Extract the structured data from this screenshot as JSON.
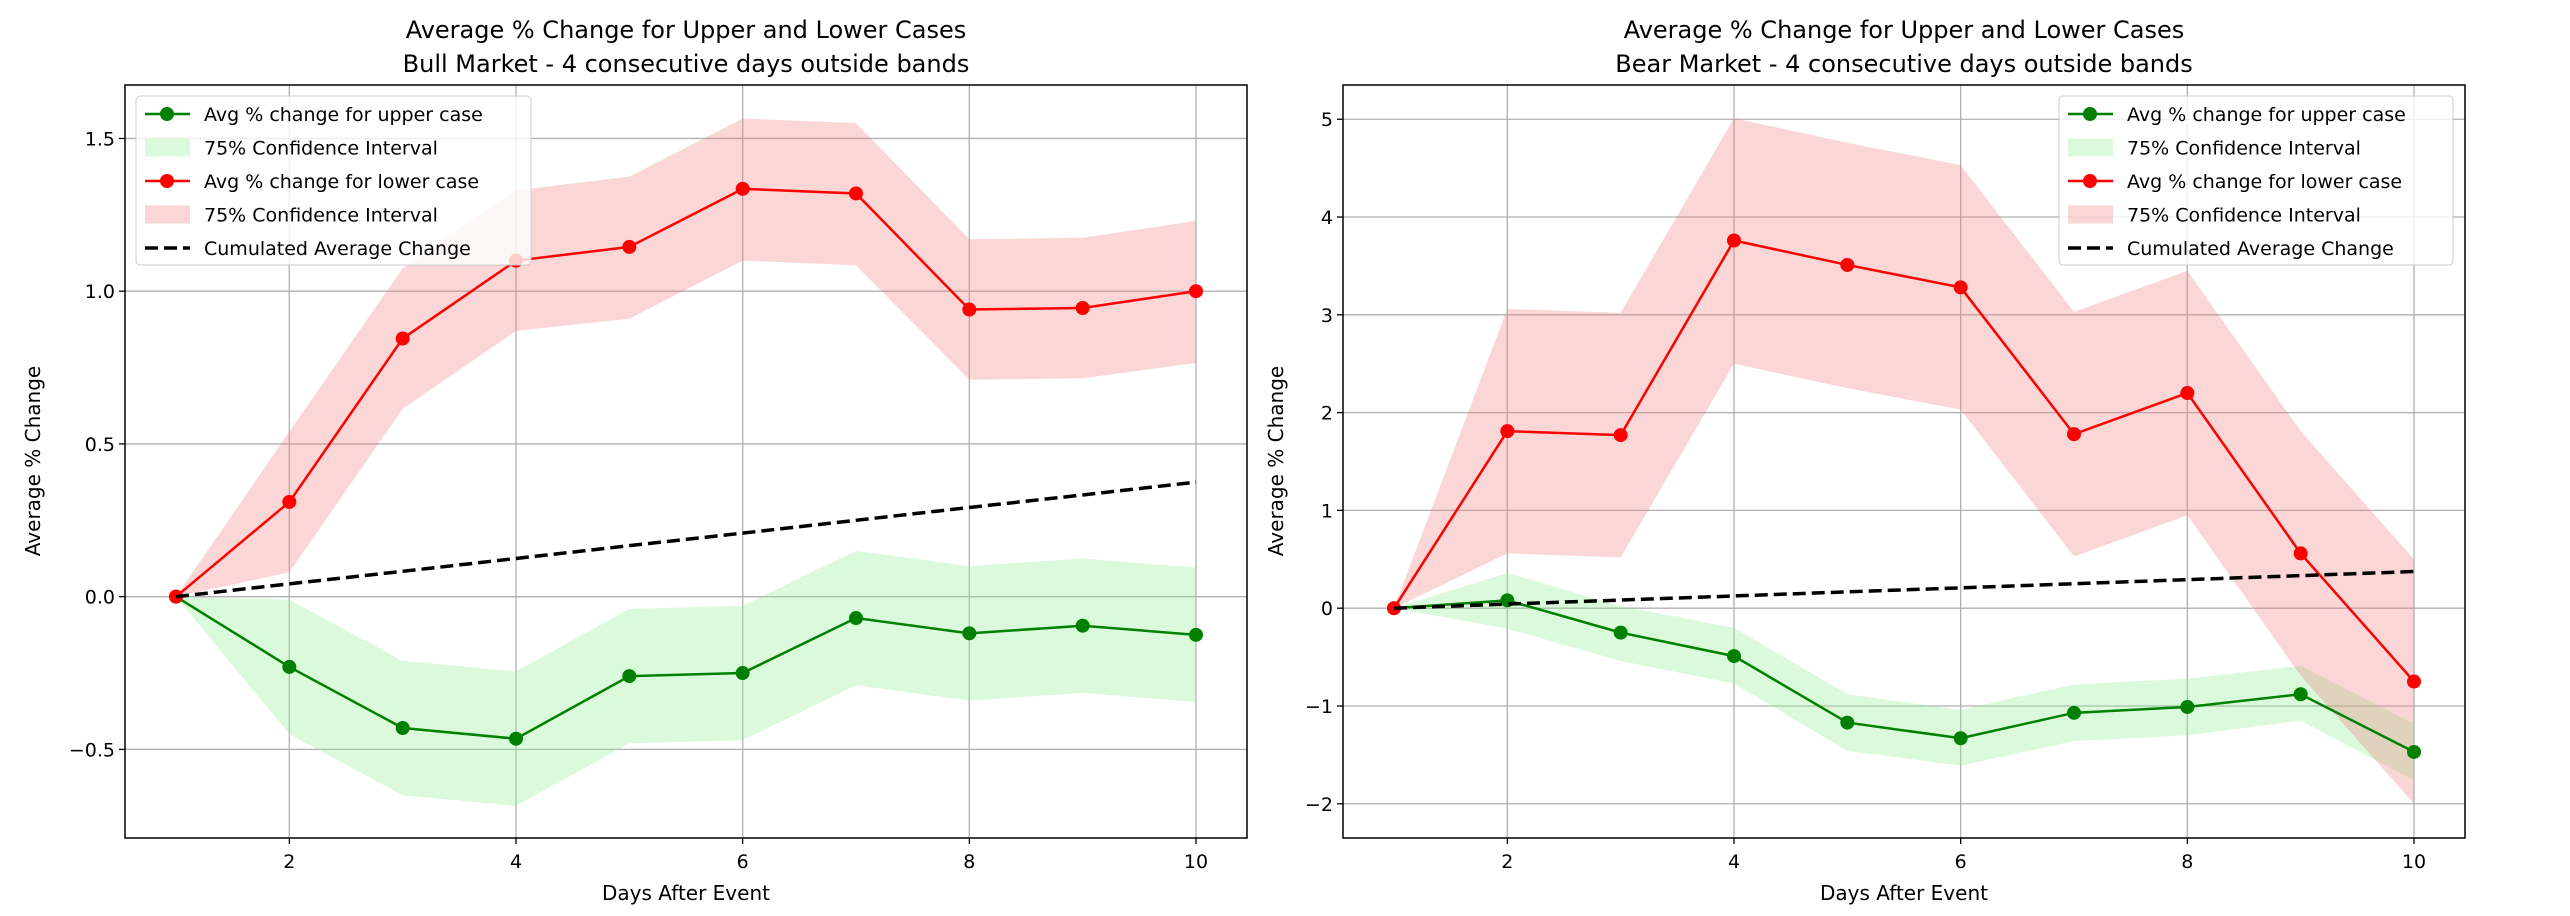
{
  "chart_data": [
    {
      "type": "line",
      "title": "Average % Change for Upper and Lower Cases",
      "subtitle": "Bull Market - 4 consecutive days outside bands",
      "xlabel": "Days After Event",
      "ylabel": "Average % Change",
      "xlim": [
        0.55,
        10.45
      ],
      "ylim": [
        -0.79,
        1.675
      ],
      "xticks": [
        2,
        4,
        6,
        8,
        10
      ],
      "xtick_labels": [
        "2",
        "4",
        "6",
        "8",
        "10"
      ],
      "yticks": [
        -0.5,
        0.0,
        0.5,
        1.0,
        1.5
      ],
      "ytick_labels": [
        "−0.5",
        "0.0",
        "0.5",
        "1.0",
        "1.5"
      ],
      "grid": true,
      "legend_placement": "upper-left",
      "x": [
        1,
        2,
        3,
        4,
        5,
        6,
        7,
        8,
        9,
        10
      ],
      "series": [
        {
          "name": "Avg % change for upper case",
          "kind": "line-marker",
          "color": "#008000",
          "values": [
            0,
            -0.23,
            -0.43,
            -0.465,
            -0.26,
            -0.25,
            -0.07,
            -0.12,
            -0.095,
            -0.125
          ]
        },
        {
          "name": "75% Confidence Interval",
          "kind": "band",
          "color": "#90ee90",
          "lower": [
            0,
            -0.45,
            -0.65,
            -0.685,
            -0.48,
            -0.47,
            -0.29,
            -0.34,
            -0.315,
            -0.345
          ],
          "upper": [
            0,
            -0.01,
            -0.21,
            -0.245,
            -0.04,
            -0.03,
            0.15,
            0.1,
            0.125,
            0.095
          ]
        },
        {
          "name": "Avg % change for lower case",
          "kind": "line-marker",
          "color": "#ff0000",
          "values": [
            0,
            0.31,
            0.845,
            1.1,
            1.145,
            1.335,
            1.32,
            0.94,
            0.945,
            1.0
          ]
        },
        {
          "name": "75% Confidence Interval",
          "kind": "band",
          "color": "#f08080",
          "lower": [
            0,
            0.08,
            0.615,
            0.87,
            0.91,
            1.1,
            1.085,
            0.71,
            0.715,
            0.765
          ],
          "upper": [
            0,
            0.54,
            1.075,
            1.33,
            1.375,
            1.565,
            1.55,
            1.17,
            1.175,
            1.23
          ]
        },
        {
          "name": "Cumulated Average Change",
          "kind": "dashed",
          "color": "#000000",
          "values": [
            0,
            0.042,
            0.083,
            0.125,
            0.167,
            0.208,
            0.25,
            0.292,
            0.333,
            0.375
          ]
        }
      ]
    },
    {
      "type": "line",
      "title": "Average % Change for Upper and Lower Cases",
      "subtitle": "Bear Market - 4 consecutive days outside bands",
      "xlabel": "Days After Event",
      "ylabel": "Average % Change",
      "xlim": [
        0.55,
        10.45
      ],
      "ylim": [
        -2.35,
        5.35
      ],
      "xticks": [
        2,
        4,
        6,
        8,
        10
      ],
      "xtick_labels": [
        "2",
        "4",
        "6",
        "8",
        "10"
      ],
      "yticks": [
        -2,
        -1,
        0,
        1,
        2,
        3,
        4,
        5
      ],
      "ytick_labels": [
        "−2",
        "−1",
        "0",
        "1",
        "2",
        "3",
        "4",
        "5"
      ],
      "grid": true,
      "legend_placement": "upper-right",
      "x": [
        1,
        2,
        3,
        4,
        5,
        6,
        7,
        8,
        9,
        10
      ],
      "series": [
        {
          "name": "Avg % change for upper case",
          "kind": "line-marker",
          "color": "#008000",
          "values": [
            0,
            0.08,
            -0.25,
            -0.49,
            -1.17,
            -1.33,
            -1.07,
            -1.01,
            -0.88,
            -1.47
          ]
        },
        {
          "name": "75% Confidence Interval",
          "kind": "band",
          "color": "#90ee90",
          "lower": [
            0,
            -0.21,
            -0.54,
            -0.77,
            -1.46,
            -1.61,
            -1.36,
            -1.3,
            -1.15,
            -1.76
          ],
          "upper": [
            0,
            0.36,
            0.02,
            -0.2,
            -0.88,
            -1.04,
            -0.78,
            -0.72,
            -0.59,
            -1.18
          ]
        },
        {
          "name": "Avg % change for lower case",
          "kind": "line-marker",
          "color": "#ff0000",
          "values": [
            0,
            1.81,
            1.77,
            3.76,
            3.51,
            3.28,
            1.78,
            2.2,
            0.56,
            -0.75
          ]
        },
        {
          "name": "75% Confidence Interval",
          "kind": "band",
          "color": "#f08080",
          "lower": [
            0,
            0.56,
            0.52,
            2.5,
            2.25,
            2.03,
            0.53,
            0.95,
            -0.69,
            -2.0
          ],
          "upper": [
            0,
            3.06,
            3.02,
            5.01,
            4.76,
            4.53,
            3.03,
            3.45,
            1.81,
            0.5
          ]
        },
        {
          "name": "Cumulated Average Change",
          "kind": "dashed",
          "color": "#000000",
          "values": [
            0,
            0.042,
            0.083,
            0.125,
            0.167,
            0.208,
            0.25,
            0.292,
            0.333,
            0.375
          ]
        }
      ]
    }
  ]
}
